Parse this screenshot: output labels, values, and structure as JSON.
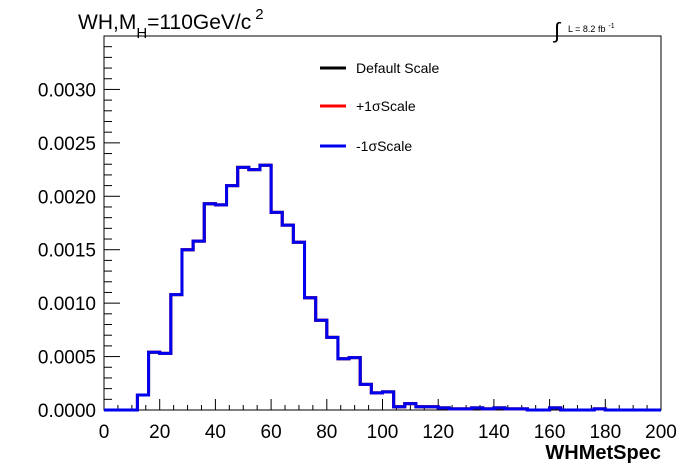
{
  "chart_data": {
    "type": "line",
    "style": "step-histogram",
    "title_main": "WH,M",
    "title_sub": "H",
    "title_rest": "=110GeV/c",
    "title_sup": "2",
    "lumi_label": "L = 8.2 fb",
    "lumi_sup": "-1",
    "xlabel": "WHMetSpec",
    "ylabel": "",
    "xlim": [
      0,
      200
    ],
    "ylim": [
      0,
      0.0035
    ],
    "x_ticks": [
      0,
      20,
      40,
      60,
      80,
      100,
      120,
      140,
      160,
      180,
      200
    ],
    "y_ticks": [
      0.0,
      0.0005,
      0.001,
      0.0015,
      0.002,
      0.0025,
      0.003
    ],
    "x_tick_labels": [
      "0",
      "20",
      "40",
      "60",
      "80",
      "100",
      "120",
      "140",
      "160",
      "180",
      "200"
    ],
    "y_tick_labels": [
      "0.0000",
      "0.0005",
      "0.0010",
      "0.0015",
      "0.0020",
      "0.0025",
      "0.0030"
    ],
    "grid": false,
    "legend_position": "top-center",
    "bin_edges": [
      0,
      4,
      8,
      12,
      16,
      20,
      24,
      28,
      32,
      36,
      40,
      44,
      48,
      52,
      56,
      60,
      64,
      68,
      72,
      76,
      80,
      84,
      88,
      92,
      96,
      100,
      104,
      108,
      112,
      116,
      120,
      124,
      128,
      132,
      136,
      140,
      144,
      148,
      152,
      156,
      160,
      164,
      168,
      172,
      176,
      180,
      184,
      188,
      192,
      196,
      200
    ],
    "series": [
      {
        "name": "Default Scale",
        "color": "#000000",
        "values": [
          0,
          0,
          0,
          0.00014,
          0.00054,
          0.00053,
          0.00108,
          0.0015,
          0.00158,
          0.00193,
          0.00192,
          0.0021,
          0.00227,
          0.00225,
          0.00229,
          0.00185,
          0.00173,
          0.00157,
          0.00105,
          0.00084,
          0.00068,
          0.00048,
          0.00049,
          0.00024,
          0.00016,
          0.00017,
          3e-05,
          6e-05,
          3e-05,
          3e-05,
          2e-05,
          1e-05,
          1e-05,
          2e-05,
          1e-05,
          2e-05,
          1e-05,
          1e-05,
          0,
          0,
          2e-05,
          0,
          0,
          0,
          1e-05,
          0,
          0,
          0,
          0,
          0
        ]
      },
      {
        "name": "+1σScale",
        "color": "#ff0000",
        "values": [
          0,
          0,
          0,
          0.00014,
          0.00054,
          0.00053,
          0.00108,
          0.0015,
          0.00158,
          0.00193,
          0.00192,
          0.0021,
          0.00227,
          0.00225,
          0.00229,
          0.00185,
          0.00173,
          0.00157,
          0.00105,
          0.00084,
          0.00068,
          0.00048,
          0.00049,
          0.00024,
          0.00016,
          0.00017,
          3e-05,
          6e-05,
          3e-05,
          3e-05,
          2e-05,
          1e-05,
          1e-05,
          2e-05,
          1e-05,
          2e-05,
          1e-05,
          1e-05,
          0,
          0,
          2e-05,
          0,
          0,
          0,
          1e-05,
          0,
          0,
          0,
          0,
          0
        ]
      },
      {
        "name": "-1σScale",
        "color": "#0000ee",
        "values": [
          0,
          0,
          0,
          0.00014,
          0.00054,
          0.00053,
          0.00108,
          0.0015,
          0.00158,
          0.00193,
          0.00192,
          0.0021,
          0.00227,
          0.00225,
          0.00229,
          0.00185,
          0.00173,
          0.00157,
          0.00105,
          0.00084,
          0.00068,
          0.00048,
          0.00049,
          0.00024,
          0.00016,
          0.00017,
          3e-05,
          6e-05,
          3e-05,
          3e-05,
          2e-05,
          1e-05,
          1e-05,
          2e-05,
          1e-05,
          2e-05,
          1e-05,
          1e-05,
          0,
          0,
          2e-05,
          0,
          0,
          0,
          1e-05,
          0,
          0,
          0,
          0,
          0
        ]
      }
    ]
  }
}
